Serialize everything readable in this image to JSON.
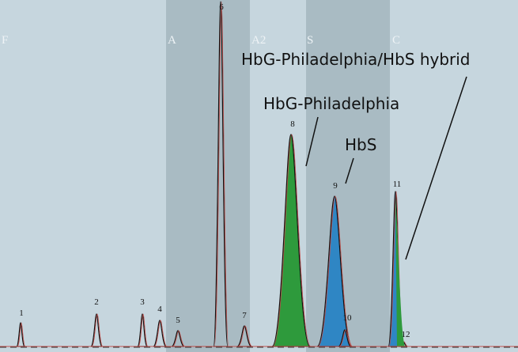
{
  "windows": [
    "F",
    "A",
    "A2",
    "S",
    "C"
  ],
  "peaks": [
    "1",
    "2",
    "3",
    "4",
    "5",
    "6",
    "7",
    "8",
    "9",
    "10",
    "11",
    "12"
  ],
  "annotations": [
    "HbG-Philadelphia/HbS hybrid",
    "HbG-Philadelphia",
    "HbS"
  ]
}
